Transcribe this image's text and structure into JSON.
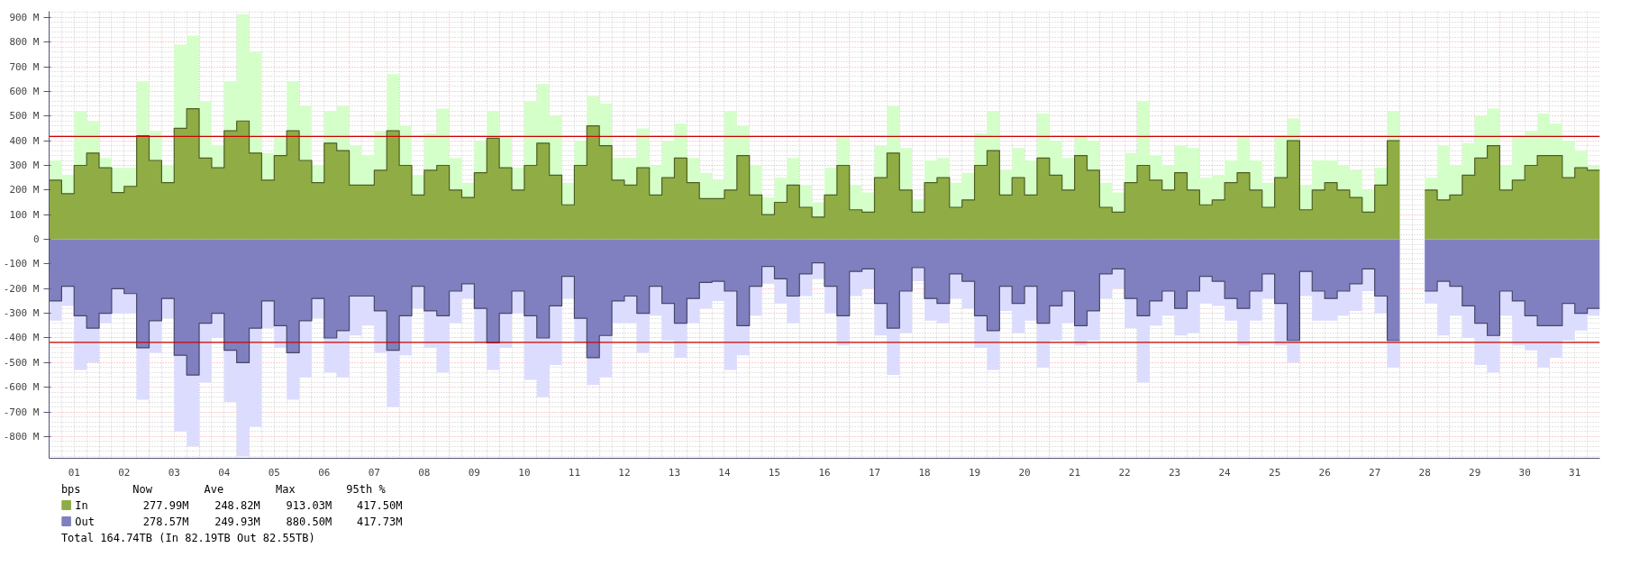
{
  "chart_data": {
    "type": "area",
    "x": [
      0.125,
      0.375,
      0.625,
      0.875,
      1.125,
      1.375,
      1.625,
      1.875,
      2.125,
      2.375,
      2.625,
      2.875,
      3.125,
      3.375,
      3.625,
      3.875,
      4.125,
      4.375,
      4.625,
      4.875,
      5.125,
      5.375,
      5.625,
      5.875,
      6.125,
      6.375,
      6.625,
      6.875,
      7.125,
      7.375,
      7.625,
      7.875,
      8.125,
      8.375,
      8.625,
      8.875,
      9.125,
      9.375,
      9.625,
      9.875,
      10.125,
      10.375,
      10.625,
      10.875,
      11.125,
      11.375,
      11.625,
      11.875,
      12.125,
      12.375,
      12.625,
      12.875,
      13.125,
      13.375,
      13.625,
      13.875,
      14.125,
      14.375,
      14.625,
      14.875,
      15.125,
      15.375,
      15.625,
      15.875,
      16.125,
      16.375,
      16.625,
      16.875,
      17.125,
      17.375,
      17.625,
      17.875,
      18.125,
      18.375,
      18.625,
      18.875,
      19.125,
      19.375,
      19.625,
      19.875,
      20.125,
      20.375,
      20.625,
      20.875,
      21.125,
      21.375,
      21.625,
      21.875,
      22.125,
      22.375,
      22.625,
      22.875,
      23.125,
      23.375,
      23.625,
      23.875,
      24.125,
      24.375,
      24.625,
      24.875,
      25.125,
      25.375,
      25.625,
      25.875,
      26.125,
      26.375,
      26.625,
      26.875,
      27.125,
      27.375,
      27.625,
      27.875,
      28.125,
      28.375,
      28.625,
      28.875,
      29.125,
      29.375,
      29.625,
      29.875,
      30.125,
      30.375,
      30.625,
      30.875
    ],
    "series": [
      {
        "color": "#d5ffc8",
        "values": [
          320,
          260,
          520,
          480,
          330,
          290,
          290,
          640,
          440,
          300,
          790,
          825,
          560,
          380,
          640,
          913,
          760,
          350,
          420,
          640,
          540,
          300,
          520,
          540,
          380,
          340,
          440,
          670,
          460,
          260,
          430,
          530,
          330,
          230,
          400,
          520,
          420,
          290,
          560,
          630,
          500,
          230,
          400,
          580,
          550,
          330,
          330,
          450,
          300,
          400,
          470,
          330,
          270,
          240,
          520,
          460,
          300,
          170,
          250,
          330,
          220,
          150,
          290,
          420,
          220,
          190,
          380,
          540,
          370,
          160,
          320,
          330,
          230,
          270,
          430,
          520,
          280,
          370,
          320,
          510,
          400,
          330,
          420,
          400,
          230,
          190,
          350,
          560,
          340,
          300,
          380,
          370,
          250,
          260,
          320,
          420,
          320,
          230,
          420,
          490,
          220,
          320,
          320,
          300,
          280,
          200,
          290,
          520,
          null,
          null,
          250,
          380,
          300,
          390,
          500,
          530,
          300,
          420,
          440,
          510,
          470,
          400,
          360,
          300
        ]
      },
      {
        "name": "In",
        "color": "#8fad44",
        "values": [
          240,
          185,
          300,
          350,
          290,
          190,
          215,
          420,
          320,
          230,
          450,
          530,
          330,
          290,
          440,
          480,
          350,
          240,
          340,
          440,
          320,
          230,
          390,
          360,
          220,
          220,
          280,
          440,
          300,
          180,
          280,
          300,
          200,
          170,
          270,
          410,
          290,
          200,
          300,
          390,
          260,
          140,
          300,
          460,
          380,
          240,
          220,
          290,
          180,
          250,
          330,
          230,
          165,
          165,
          200,
          340,
          180,
          100,
          150,
          220,
          130,
          90,
          180,
          300,
          120,
          110,
          250,
          350,
          200,
          110,
          230,
          250,
          130,
          160,
          300,
          360,
          180,
          250,
          180,
          330,
          260,
          200,
          340,
          280,
          130,
          110,
          230,
          300,
          240,
          200,
          270,
          200,
          140,
          160,
          230,
          270,
          200,
          130,
          250,
          400,
          120,
          200,
          230,
          200,
          170,
          110,
          220,
          400,
          null,
          null,
          200,
          160,
          180,
          260,
          330,
          380,
          200,
          240,
          300,
          340,
          340,
          250,
          290,
          280
        ]
      },
      {
        "color": "#dcdcff",
        "values": [
          -330,
          -270,
          -530,
          -500,
          -340,
          -300,
          -300,
          -650,
          -460,
          -320,
          -780,
          -840,
          -580,
          -400,
          -660,
          -880,
          -760,
          -360,
          -440,
          -650,
          -560,
          -320,
          -540,
          -560,
          -390,
          -350,
          -460,
          -680,
          -470,
          -280,
          -440,
          -540,
          -340,
          -240,
          -420,
          -530,
          -440,
          -300,
          -570,
          -640,
          -510,
          -240,
          -420,
          -590,
          -560,
          -340,
          -340,
          -460,
          -310,
          -410,
          -480,
          -340,
          -280,
          -250,
          -530,
          -470,
          -310,
          -180,
          -260,
          -340,
          -230,
          -160,
          -300,
          -430,
          -230,
          -200,
          -390,
          -550,
          -380,
          -170,
          -330,
          -340,
          -240,
          -280,
          -440,
          -530,
          -290,
          -380,
          -330,
          -520,
          -410,
          -340,
          -430,
          -410,
          -240,
          -200,
          -360,
          -580,
          -350,
          -310,
          -390,
          -380,
          -260,
          -270,
          -330,
          -430,
          -330,
          -240,
          -430,
          -500,
          -230,
          -330,
          -330,
          -310,
          -290,
          -210,
          -300,
          -520,
          null,
          null,
          -260,
          -390,
          -310,
          -400,
          -510,
          -540,
          -310,
          -430,
          -450,
          -520,
          -480,
          -410,
          -370,
          -310
        ]
      },
      {
        "name": "Out",
        "color": "#8080c0",
        "values": [
          -250,
          -190,
          -310,
          -360,
          -300,
          -200,
          -220,
          -440,
          -330,
          -240,
          -470,
          -550,
          -340,
          -300,
          -450,
          -500,
          -360,
          -250,
          -350,
          -460,
          -330,
          -240,
          -400,
          -370,
          -230,
          -230,
          -290,
          -450,
          -310,
          -190,
          -290,
          -310,
          -210,
          -180,
          -280,
          -420,
          -300,
          -210,
          -310,
          -400,
          -270,
          -150,
          -320,
          -480,
          -390,
          -250,
          -230,
          -300,
          -190,
          -260,
          -340,
          -240,
          -175,
          -170,
          -210,
          -350,
          -190,
          -110,
          -160,
          -230,
          -140,
          -95,
          -190,
          -310,
          -130,
          -120,
          -260,
          -360,
          -210,
          -115,
          -240,
          -260,
          -140,
          -170,
          -310,
          -370,
          -190,
          -260,
          -190,
          -340,
          -270,
          -210,
          -350,
          -290,
          -140,
          -120,
          -240,
          -310,
          -250,
          -210,
          -280,
          -210,
          -150,
          -170,
          -240,
          -280,
          -210,
          -140,
          -260,
          -410,
          -130,
          -210,
          -240,
          -210,
          -180,
          -120,
          -230,
          -410,
          null,
          null,
          -210,
          -170,
          -190,
          -270,
          -340,
          -390,
          -210,
          -250,
          -310,
          -350,
          -350,
          -260,
          -300,
          -280
        ]
      }
    ],
    "xlim": [
      0,
      31
    ],
    "xticks": [
      {
        "value": 0.5,
        "label": "01"
      },
      {
        "value": 1.5,
        "label": "02"
      },
      {
        "value": 2.5,
        "label": "03"
      },
      {
        "value": 3.5,
        "label": "04"
      },
      {
        "value": 4.5,
        "label": "05"
      },
      {
        "value": 5.5,
        "label": "06"
      },
      {
        "value": 6.5,
        "label": "07"
      },
      {
        "value": 7.5,
        "label": "08"
      },
      {
        "value": 8.5,
        "label": "09"
      },
      {
        "value": 9.5,
        "label": "10"
      },
      {
        "value": 10.5,
        "label": "11"
      },
      {
        "value": 11.5,
        "label": "12"
      },
      {
        "value": 12.5,
        "label": "13"
      },
      {
        "value": 13.5,
        "label": "14"
      },
      {
        "value": 14.5,
        "label": "15"
      },
      {
        "value": 15.5,
        "label": "16"
      },
      {
        "value": 16.5,
        "label": "17"
      },
      {
        "value": 17.5,
        "label": "18"
      },
      {
        "value": 18.5,
        "label": "19"
      },
      {
        "value": 19.5,
        "label": "20"
      },
      {
        "value": 20.5,
        "label": "21"
      },
      {
        "value": 21.5,
        "label": "22"
      },
      {
        "value": 22.5,
        "label": "23"
      },
      {
        "value": 23.5,
        "label": "24"
      },
      {
        "value": 24.5,
        "label": "25"
      },
      {
        "value": 25.5,
        "label": "26"
      },
      {
        "value": 26.5,
        "label": "27"
      },
      {
        "value": 27.5,
        "label": "28"
      },
      {
        "value": 28.5,
        "label": "29"
      },
      {
        "value": 29.5,
        "label": "30"
      },
      {
        "value": 30.5,
        "label": "31"
      }
    ],
    "ylim": [
      -888,
      925
    ],
    "yticks": [
      {
        "value": -800,
        "label": "-800 M"
      },
      {
        "value": -700,
        "label": "-700 M"
      },
      {
        "value": -600,
        "label": "-600 M"
      },
      {
        "value": -500,
        "label": "-500 M"
      },
      {
        "value": -400,
        "label": "-400 M"
      },
      {
        "value": -300,
        "label": "-300 M"
      },
      {
        "value": -200,
        "label": "-200 M"
      },
      {
        "value": -100,
        "label": "-100 M"
      },
      0,
      {
        "value": 100,
        "label": "100 M"
      },
      {
        "value": 200,
        "label": "200 M"
      },
      {
        "value": 300,
        "label": "300 M"
      },
      {
        "value": 400,
        "label": "400 M"
      },
      {
        "value": 500,
        "label": "500 M"
      },
      {
        "value": 600,
        "label": "600 M"
      },
      {
        "value": 700,
        "label": "700 M"
      },
      {
        "value": 800,
        "label": "800 M"
      },
      {
        "value": 900,
        "label": "900 M"
      }
    ],
    "ref_lines": [
      {
        "axis": "y",
        "value": 417.5,
        "color": "#cc0000"
      },
      {
        "axis": "y",
        "value": -417.73,
        "color": "#cc0000"
      }
    ],
    "grid": true,
    "legend": "bottom",
    "annotations": [
      "bps",
      "Now",
      "Ave",
      "Max",
      "95th %",
      "277.99M",
      "248.82M",
      "913.03M",
      "417.50M",
      "278.57M",
      "249.93M",
      "880.50M",
      "417.73M",
      "Total 164.74TB (In 82.19TB Out 82.55TB)"
    ]
  }
}
